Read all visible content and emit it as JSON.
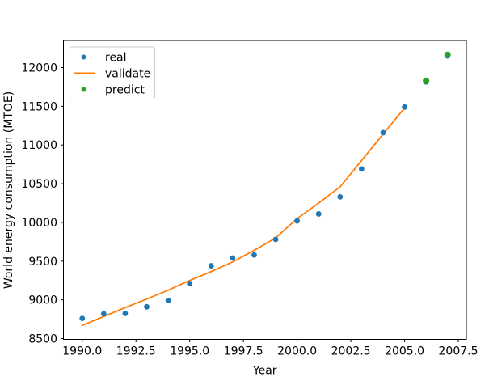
{
  "figure": {
    "background": "#ffffff"
  },
  "chart_data": {
    "type": "scatter",
    "title": "",
    "xlabel": "Year",
    "ylabel": "World energy consumption (MTOE)",
    "xlim": [
      1989.125,
      2007.875
    ],
    "ylim": [
      8490,
      12350
    ],
    "grid": false,
    "xticks": {
      "values": [
        1990.0,
        1992.5,
        1995.0,
        1997.5,
        2000.0,
        2002.5,
        2005.0,
        2007.5
      ],
      "labels": [
        "1990.0",
        "1992.5",
        "1995.0",
        "1997.5",
        "2000.0",
        "2002.5",
        "2005.0",
        "2007.5"
      ]
    },
    "yticks": {
      "values": [
        8500,
        9000,
        9500,
        10000,
        10500,
        11000,
        11500,
        12000
      ],
      "labels": [
        "8500",
        "9000",
        "9500",
        "10000",
        "10500",
        "11000",
        "11500",
        "12000"
      ]
    },
    "series": [
      {
        "name": "real",
        "type": "scatter",
        "color": "#1f77b4",
        "marker": "circle",
        "marker_radius": 3.4,
        "zorder": 2,
        "x": [
          1990,
          1991,
          1992,
          1993,
          1994,
          1995,
          1996,
          1997,
          1998,
          1999,
          2000,
          2001,
          2002,
          2003,
          2004,
          2005,
          2006,
          2007
        ],
        "y": [
          8760,
          8820,
          8825,
          8910,
          8990,
          9210,
          9440,
          9540,
          9580,
          9780,
          10020,
          10110,
          10330,
          10690,
          11160,
          11490,
          11815,
          12150
        ]
      },
      {
        "name": "validate",
        "type": "line",
        "color": "#ff7f0e",
        "line_width": 1.8,
        "zorder": 1,
        "x": [
          1990,
          1991,
          1992,
          1993,
          1994,
          1995,
          1996,
          1997,
          1998,
          1999,
          2000,
          2001,
          2002,
          2003,
          2004,
          2005
        ],
        "y": [
          8670,
          8785,
          8900,
          9010,
          9125,
          9250,
          9365,
          9490,
          9640,
          9800,
          10050,
          10250,
          10460,
          10800,
          11140,
          11480
        ]
      },
      {
        "name": "predict",
        "type": "scatter",
        "color": "#2ca02c",
        "marker": "circle",
        "marker_radius": 4.0,
        "zorder": 3,
        "x": [
          2006,
          2007
        ],
        "y": [
          11830,
          12165
        ]
      }
    ],
    "legend": {
      "position": "upper-left",
      "entries": [
        "real",
        "validate",
        "predict"
      ],
      "border_color": "#cccccc",
      "background_color": "#ffffff"
    }
  }
}
